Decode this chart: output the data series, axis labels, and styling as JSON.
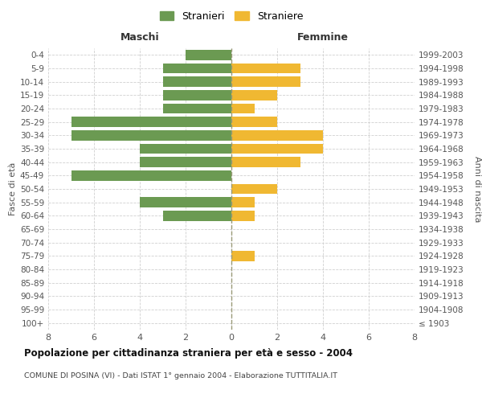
{
  "age_groups": [
    "100+",
    "95-99",
    "90-94",
    "85-89",
    "80-84",
    "75-79",
    "70-74",
    "65-69",
    "60-64",
    "55-59",
    "50-54",
    "45-49",
    "40-44",
    "35-39",
    "30-34",
    "25-29",
    "20-24",
    "15-19",
    "10-14",
    "5-9",
    "0-4"
  ],
  "birth_years": [
    "≤ 1903",
    "1904-1908",
    "1909-1913",
    "1914-1918",
    "1919-1923",
    "1924-1928",
    "1929-1933",
    "1934-1938",
    "1939-1943",
    "1944-1948",
    "1949-1953",
    "1954-1958",
    "1959-1963",
    "1964-1968",
    "1969-1973",
    "1974-1978",
    "1979-1983",
    "1984-1988",
    "1989-1993",
    "1994-1998",
    "1999-2003"
  ],
  "maschi": [
    0,
    0,
    0,
    0,
    0,
    0,
    0,
    0,
    3,
    4,
    0,
    7,
    4,
    4,
    7,
    7,
    3,
    3,
    3,
    3,
    2
  ],
  "femmine": [
    0,
    0,
    0,
    0,
    0,
    1,
    0,
    0,
    1,
    1,
    2,
    0,
    3,
    4,
    4,
    2,
    1,
    2,
    3,
    3,
    0
  ],
  "maschi_color": "#6b9a52",
  "femmine_color": "#f0b832",
  "title": "Popolazione per cittadinanza straniera per età e sesso - 2004",
  "subtitle": "COMUNE DI POSINA (VI) - Dati ISTAT 1° gennaio 2004 - Elaborazione TUTTITALIA.IT",
  "label_maschi": "Maschi",
  "label_femmine": "Femmine",
  "ylabel_left": "Fasce di età",
  "ylabel_right": "Anni di nascita",
  "legend_maschi": "Stranieri",
  "legend_femmine": "Straniere",
  "xlim": 8,
  "background_color": "#ffffff",
  "grid_color": "#d0d0d0"
}
